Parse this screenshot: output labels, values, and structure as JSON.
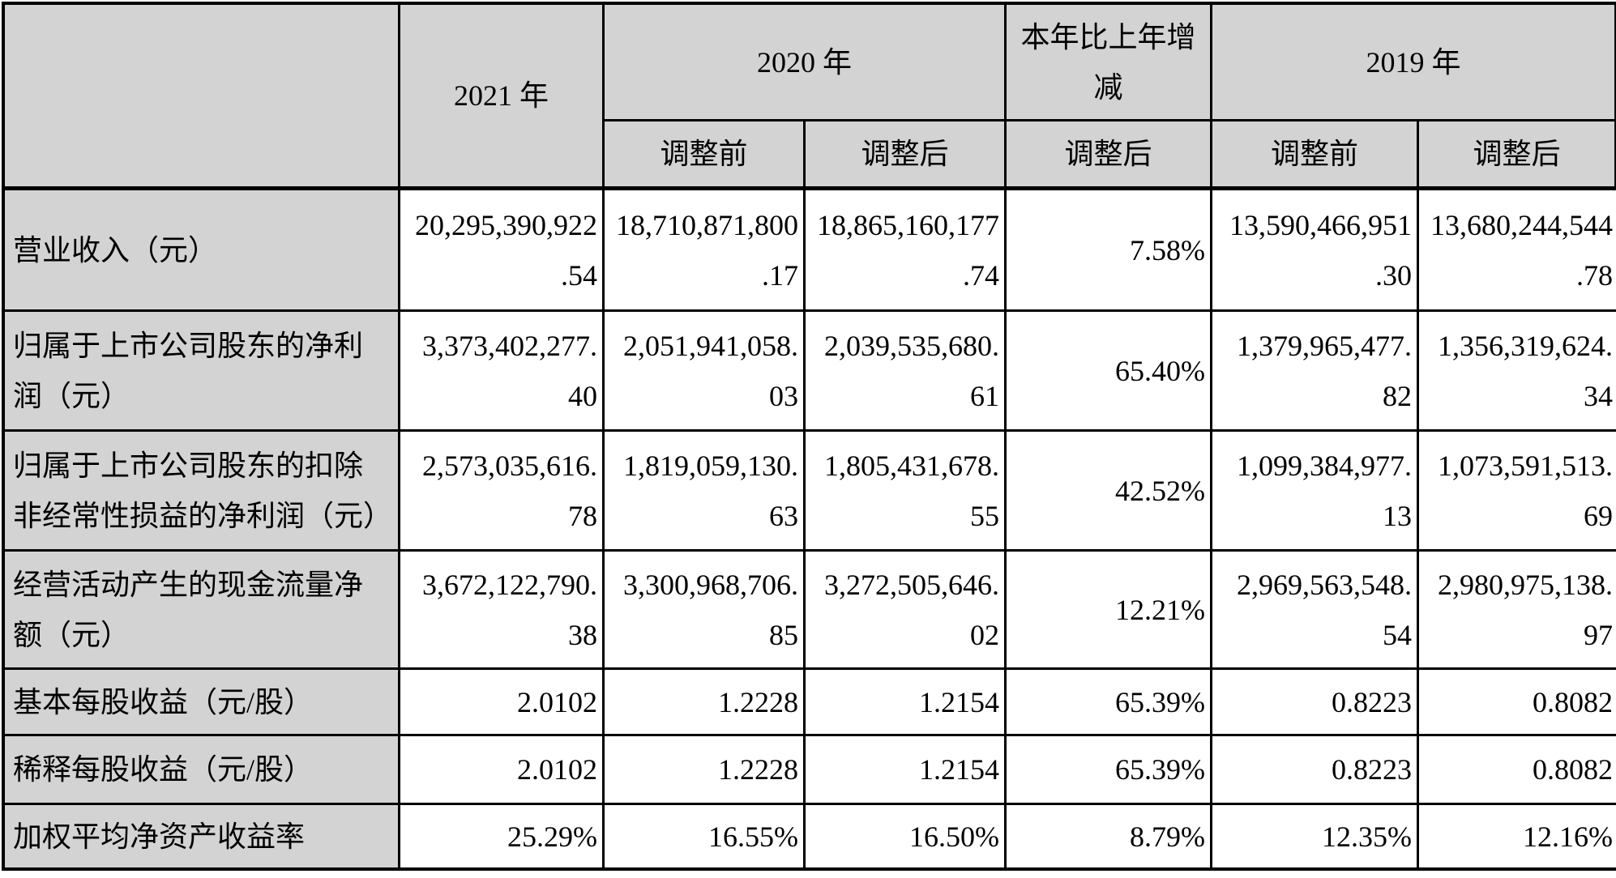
{
  "colors": {
    "header_and_label_fill": "#d3d3d3",
    "border": "#000000",
    "background": "#ffffff"
  },
  "table": {
    "header": {
      "y2021": "2021 年",
      "y2020": "2020 年",
      "change": "本年比上年增\n减",
      "y2019": "2019 年",
      "sub": {
        "pre2020": "调整前",
        "post2020": "调整后",
        "postChange": "调整后",
        "pre2019": "调整前",
        "post2019": "调整后"
      }
    },
    "rows": [
      {
        "label": "营业收入（元）",
        "cells": [
          "20,295,390,922\n.54",
          "18,710,871,800\n.17",
          "18,865,160,177\n.74",
          "7.58%",
          "13,590,466,951\n.30",
          "13,680,244,544\n.78"
        ]
      },
      {
        "label": "归属于上市公司股东的净利\n润（元）",
        "cells": [
          "3,373,402,277.\n40",
          "2,051,941,058.\n03",
          "2,039,535,680.\n61",
          "65.40%",
          "1,379,965,477.\n82",
          "1,356,319,624.\n34"
        ]
      },
      {
        "label": "归属于上市公司股东的扣除\n非经常性损益的净利润（元）",
        "cells": [
          "2,573,035,616.\n78",
          "1,819,059,130.\n63",
          "1,805,431,678.\n55",
          "42.52%",
          "1,099,384,977.\n13",
          "1,073,591,513.\n69"
        ]
      },
      {
        "label": "经营活动产生的现金流量净\n额（元）",
        "cells": [
          "3,672,122,790.\n38",
          "3,300,968,706.\n85",
          "3,272,505,646.\n02",
          "12.21%",
          "2,969,563,548.\n54",
          "2,980,975,138.\n97"
        ]
      },
      {
        "label": "基本每股收益（元/股）",
        "cells": [
          "2.0102",
          "1.2228",
          "1.2154",
          "65.39%",
          "0.8223",
          "0.8082"
        ]
      },
      {
        "label": "稀释每股收益（元/股）",
        "cells": [
          "2.0102",
          "1.2228",
          "1.2154",
          "65.39%",
          "0.8223",
          "0.8082"
        ]
      },
      {
        "label": "加权平均净资产收益率",
        "cells": [
          "25.29%",
          "16.55%",
          "16.50%",
          "8.79%",
          "12.35%",
          "12.16%"
        ]
      }
    ]
  }
}
